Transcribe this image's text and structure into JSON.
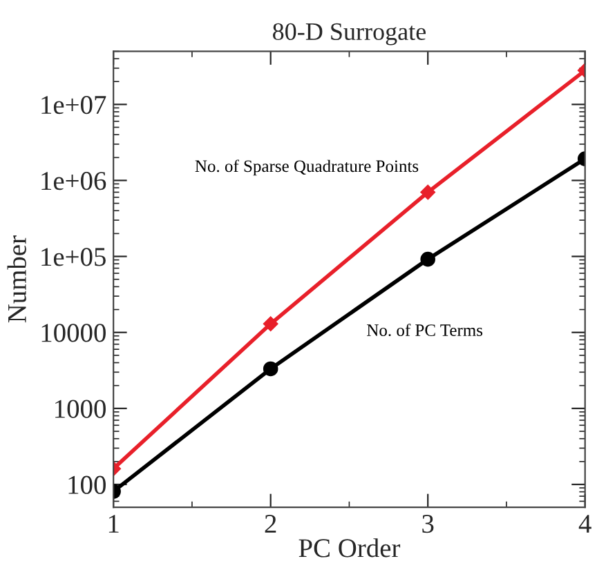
{
  "chart_data": {
    "type": "line",
    "title": "80-D Surrogate",
    "xlabel": "PC Order",
    "ylabel": "Number",
    "x": [
      1,
      2,
      3,
      4
    ],
    "series": [
      {
        "name": "No. of Sparse Quadrature Points",
        "color": "#e8202a",
        "values": [
          161,
          12961,
          699121,
          28000000
        ],
        "marker": "diamond"
      },
      {
        "name": "No. of PC Terms",
        "color": "#000000",
        "values": [
          81,
          3321,
          91881,
          1929501
        ],
        "marker": "circle"
      }
    ],
    "log": "y",
    "xlim": [
      1,
      4
    ],
    "xticks": [
      1,
      2,
      3,
      4
    ],
    "ylim": [
      50,
      50000000
    ],
    "yticks": [
      100,
      1000,
      10000,
      {
        "value": 100000,
        "label": "1e+05"
      },
      {
        "value": 1000000,
        "label": "1e+06"
      },
      {
        "value": 10000000,
        "label": "1e+07"
      }
    ],
    "grid": false,
    "legend": false,
    "line_style": "solid"
  }
}
